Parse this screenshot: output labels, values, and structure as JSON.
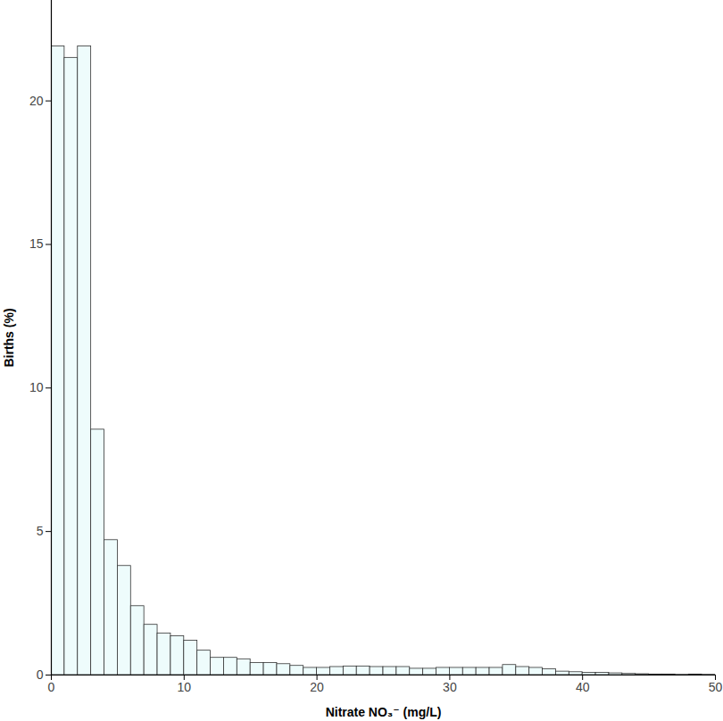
{
  "chart_data": {
    "type": "histogram",
    "x_label": "Nitrate NO₃⁻ (mg/L)",
    "y_label": "Births (%)",
    "bins": [
      0,
      1,
      2,
      3,
      4,
      5,
      6,
      7,
      8,
      9,
      10,
      11,
      12,
      13,
      14,
      15,
      16,
      17,
      18,
      19,
      20,
      21,
      22,
      23,
      24,
      25,
      26,
      27,
      28,
      29,
      30,
      31,
      32,
      33,
      34,
      35,
      36,
      37,
      38,
      39,
      40,
      41,
      42,
      43,
      44,
      45,
      46,
      47,
      48,
      49,
      50
    ],
    "counts": [
      21.9,
      21.5,
      21.9,
      8.55,
      4.7,
      3.8,
      2.4,
      1.75,
      1.45,
      1.35,
      1.2,
      0.85,
      0.6,
      0.6,
      0.55,
      0.42,
      0.42,
      0.38,
      0.32,
      0.25,
      0.25,
      0.28,
      0.3,
      0.3,
      0.28,
      0.28,
      0.28,
      0.22,
      0.22,
      0.25,
      0.25,
      0.25,
      0.25,
      0.25,
      0.35,
      0.28,
      0.25,
      0.2,
      0.12,
      0.1,
      0.08,
      0.08,
      0.06,
      0.04,
      0.03,
      0.02,
      0.02,
      0.01,
      0.02,
      0.01
    ],
    "color": "#eefcfc",
    "xlim": [
      0,
      50
    ],
    "xticks": [
      0,
      10,
      20,
      30,
      40,
      50
    ],
    "ylim": [
      0,
      23.5
    ],
    "yticks": [
      0,
      5,
      10,
      15,
      20
    ],
    "grid": false
  }
}
